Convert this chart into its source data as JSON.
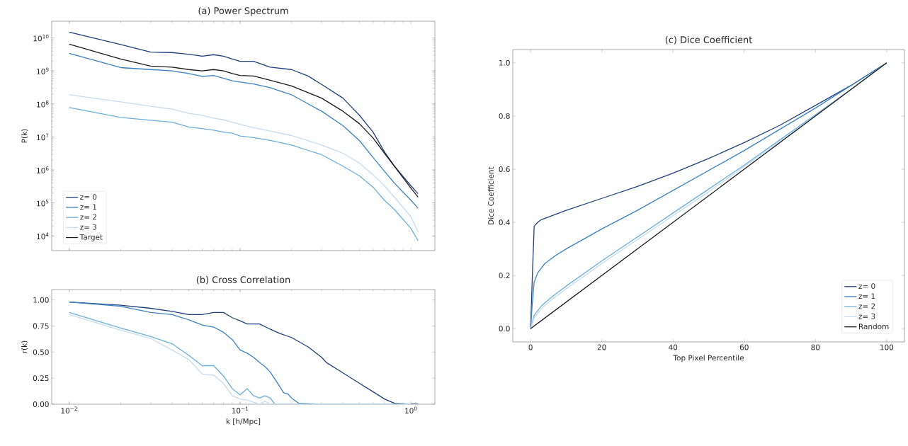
{
  "chart_data": [
    {
      "type": "line",
      "title": "(a) Power Spectrum",
      "ylabel": "P(k)",
      "log": "xy",
      "legend": "bottom left",
      "tick_labels": "y",
      "x": [
        0.01,
        0.02,
        0.03,
        0.04,
        0.05,
        0.06,
        0.07,
        0.08,
        0.09,
        0.1,
        0.12,
        0.15,
        0.2,
        0.25,
        0.3,
        0.4,
        0.5,
        0.6,
        0.7,
        0.8,
        1.0,
        1.1
      ],
      "xlim": [
        0.0079,
        1.38
      ],
      "xticks": [
        {
          "value": 0.01,
          "label": null
        },
        {
          "value": 0.1,
          "label": null
        },
        {
          "value": 1,
          "label": null
        }
      ],
      "ylim": [
        3600,
        32000000000
      ],
      "yticks": [
        {
          "value": 10000,
          "label": "10$^{4}$"
        },
        {
          "value": 100000,
          "label": "10$^{5}$"
        },
        {
          "value": 1000000,
          "label": "10$^{6}$"
        },
        {
          "value": 10000000,
          "label": "10$^{7}$"
        },
        {
          "value": 100000000,
          "label": "10$^{8}$"
        },
        {
          "value": 1000000000,
          "label": "10$^{9}$"
        },
        {
          "value": 10000000000,
          "label": "10$^{10}$"
        }
      ],
      "series": [
        {
          "name": "z= 0",
          "color": "#1f3f7e",
          "values": [
            15000000000.0,
            6300000000.0,
            3700000000.0,
            3600000000.0,
            3200000000.0,
            2800000000.0,
            3100000000.0,
            2800000000.0,
            2300000000.0,
            1950000000.0,
            1950000000.0,
            1300000000.0,
            1100000000.0,
            700000000.0,
            390000000.0,
            150000000.0,
            45000000.0,
            14000000.0,
            3500000.0,
            1300000.0,
            330000.0,
            190000.0
          ]
        },
        {
          "name": "z= 1",
          "color": "#3a80c4",
          "values": [
            3400000000.0,
            1260000000.0,
            1100000000.0,
            1000000000.0,
            830000000.0,
            680000000.0,
            730000000.0,
            600000000.0,
            500000000.0,
            460000000.0,
            400000000.0,
            310000000.0,
            190000000.0,
            100000000.0,
            60000000.0,
            22000000.0,
            7700000.0,
            2400000.0,
            900000.0,
            400000.0,
            120000.0,
            70000.0
          ]
        },
        {
          "name": "z= 2",
          "color": "#6aaedb",
          "values": [
            78000000.0,
            39000000.0,
            32000000.0,
            28000000.0,
            20000000.0,
            18000000.0,
            16000000.0,
            14000000.0,
            13000000.0,
            10700000.0,
            9500000.0,
            7800000.0,
            5700000.0,
            3900000.0,
            2900000.0,
            1300000.0,
            660000.0,
            300000.0,
            120000.0,
            63000.0,
            17000.0,
            7200.0
          ]
        },
        {
          "name": "z= 3",
          "color": "#c6dcef",
          "values": [
            190000000.0,
            115000000.0,
            85000000.0,
            70000000.0,
            52000000.0,
            45000000.0,
            37000000.0,
            33000000.0,
            28000000.0,
            24000000.0,
            19000000.0,
            15000000.0,
            11000000.0,
            7700000.0,
            5700000.0,
            3200000.0,
            1600000.0,
            720000.0,
            330000.0,
            150000.0,
            38000.0,
            13000.0
          ]
        },
        {
          "name": "Target",
          "color": "#1a1a1a",
          "values": [
            6500000000.0,
            2300000000.0,
            1400000000.0,
            1300000000.0,
            1100000000.0,
            1000000000.0,
            1100000000.0,
            1000000000.0,
            830000000.0,
            730000000.0,
            700000000.0,
            520000000.0,
            350000000.0,
            220000000.0,
            150000000.0,
            60000000.0,
            25000000.0,
            9300000.0,
            3200000.0,
            1300000.0,
            280000.0,
            150000.0
          ]
        }
      ]
    },
    {
      "type": "line",
      "title": "(b) Cross Correlation",
      "xlabel": "k [h/Mpc]",
      "ylabel": "r(k)",
      "log": "x",
      "xlim": [
        0.0079,
        1.38
      ],
      "xticks": [
        {
          "value": 0.01,
          "label": "10$^{−2}$"
        },
        {
          "value": 0.1,
          "label": "10$^{−1}$"
        },
        {
          "value": 1,
          "label": "10$^{0}$"
        }
      ],
      "ylim": [
        0,
        1.1
      ],
      "yticks": [
        {
          "value": 0,
          "label": "0.00"
        },
        {
          "value": 0.25,
          "label": "0.25"
        },
        {
          "value": 0.5,
          "label": "0.50"
        },
        {
          "value": 0.75,
          "label": "0.75"
        },
        {
          "value": 1,
          "label": "1.00"
        }
      ],
      "series": [
        {
          "color": "#1f3f7e",
          "x": [
            0.01,
            0.02,
            0.03,
            0.04,
            0.05,
            0.06,
            0.07,
            0.08,
            0.09,
            0.1,
            0.11,
            0.13,
            0.15,
            0.17,
            0.2,
            0.25,
            0.3,
            0.32,
            0.4,
            0.5,
            0.6,
            0.7,
            0.8,
            1.0,
            1.1
          ],
          "values": [
            0.98,
            0.95,
            0.92,
            0.89,
            0.86,
            0.86,
            0.88,
            0.88,
            0.83,
            0.8,
            0.77,
            0.77,
            0.72,
            0.68,
            0.64,
            0.55,
            0.45,
            0.4,
            0.3,
            0.2,
            0.12,
            0.05,
            0.01,
            0.0,
            0.0
          ]
        },
        {
          "color": "#3a80c4",
          "x": [
            0.01,
            0.02,
            0.03,
            0.04,
            0.05,
            0.06,
            0.07,
            0.08,
            0.09,
            0.1,
            0.11,
            0.12,
            0.13,
            0.14,
            0.15,
            0.16,
            0.18,
            0.19,
            0.2,
            0.22,
            0.3,
            0.5,
            1.0
          ],
          "values": [
            0.98,
            0.94,
            0.88,
            0.86,
            0.81,
            0.76,
            0.74,
            0.69,
            0.62,
            0.52,
            0.49,
            0.45,
            0.4,
            0.36,
            0.31,
            0.24,
            0.11,
            0.1,
            0.06,
            0.01,
            0.0,
            0.0,
            0.0
          ]
        },
        {
          "color": "#6aaedb",
          "x": [
            0.01,
            0.02,
            0.03,
            0.04,
            0.05,
            0.06,
            0.07,
            0.08,
            0.09,
            0.1,
            0.11,
            0.12,
            0.13,
            0.14,
            0.15,
            0.16,
            0.3,
            1.0
          ],
          "values": [
            0.88,
            0.73,
            0.65,
            0.58,
            0.47,
            0.37,
            0.37,
            0.27,
            0.15,
            0.09,
            0.15,
            0.08,
            0.06,
            0.08,
            0.06,
            0.0,
            0.0,
            0.0
          ]
        },
        {
          "color": "#c6dcef",
          "x": [
            0.01,
            0.02,
            0.03,
            0.04,
            0.05,
            0.06,
            0.07,
            0.08,
            0.09,
            0.1,
            0.11,
            0.12,
            0.13,
            0.14,
            0.15,
            0.3,
            1.0
          ],
          "values": [
            0.86,
            0.71,
            0.63,
            0.52,
            0.43,
            0.29,
            0.28,
            0.2,
            0.08,
            0.05,
            0.04,
            0.02,
            0.0,
            0.03,
            0.0,
            0.0,
            0.0
          ]
        }
      ]
    },
    {
      "type": "line",
      "title": "(c) Dice Coefficient",
      "xlabel": "Top Pixel Percentile",
      "ylabel": "Dice Coefficient",
      "legend": "bottom right",
      "xlim": [
        -5,
        105
      ],
      "xticks": [
        0,
        20,
        40,
        60,
        80,
        100
      ],
      "ylim": [
        -0.05,
        1.05
      ],
      "yticks": [
        {
          "value": 0,
          "label": "0.0"
        },
        {
          "value": 0.2,
          "label": "0.2"
        },
        {
          "value": 0.4,
          "label": "0.4"
        },
        {
          "value": 0.6,
          "label": "0.6"
        },
        {
          "value": 0.8,
          "label": "0.8"
        },
        {
          "value": 1,
          "label": "1.0"
        }
      ],
      "series": [
        {
          "name": "z= 0",
          "color": "#1f3f7e",
          "x": [
            0,
            0.5,
            1,
            2,
            3,
            5,
            10,
            20,
            30,
            40,
            50,
            60,
            70,
            80,
            90,
            100
          ],
          "values": [
            0,
            0.2,
            0.385,
            0.4,
            0.41,
            0.42,
            0.445,
            0.49,
            0.535,
            0.585,
            0.64,
            0.7,
            0.765,
            0.84,
            0.915,
            1.0
          ]
        },
        {
          "name": "z= 1",
          "color": "#3a80c4",
          "x": [
            0,
            0.5,
            1,
            2,
            4,
            7,
            10,
            20,
            30,
            40,
            50,
            60,
            70,
            80,
            90,
            100
          ],
          "values": [
            0,
            0.1,
            0.175,
            0.21,
            0.245,
            0.275,
            0.3,
            0.375,
            0.445,
            0.52,
            0.595,
            0.67,
            0.75,
            0.83,
            0.915,
            1.0
          ]
        },
        {
          "name": "z= 2",
          "color": "#6aaedb",
          "x": [
            0,
            1,
            3,
            6,
            10,
            20,
            30,
            40,
            50,
            60,
            70,
            80,
            90,
            100
          ],
          "values": [
            0,
            0.05,
            0.085,
            0.12,
            0.16,
            0.255,
            0.345,
            0.435,
            0.525,
            0.615,
            0.71,
            0.805,
            0.9,
            1.0
          ]
        },
        {
          "name": "z= 3",
          "color": "#c6dcef",
          "x": [
            0,
            1,
            3,
            6,
            10,
            20,
            30,
            40,
            50,
            60,
            70,
            80,
            90,
            100
          ],
          "values": [
            0,
            0.04,
            0.075,
            0.11,
            0.15,
            0.245,
            0.335,
            0.425,
            0.515,
            0.61,
            0.705,
            0.8,
            0.9,
            1.0
          ]
        },
        {
          "name": "Random",
          "color": "#1a1a1a",
          "x": [
            0,
            100
          ],
          "values": [
            0,
            1
          ]
        }
      ]
    }
  ]
}
